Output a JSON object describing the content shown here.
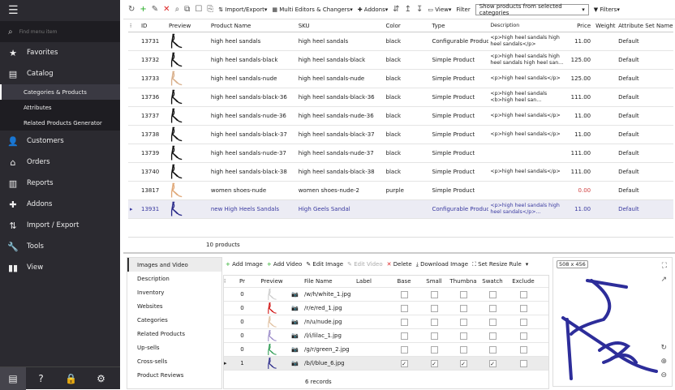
{
  "sidebar": {
    "search_placeholder": "Find menu item",
    "items": [
      {
        "label": "Favorites",
        "icon": "star-icon"
      },
      {
        "label": "Catalog",
        "icon": "archive-icon"
      }
    ],
    "catalog_sub": [
      "Categories & Products",
      "Attributes",
      "Related Products Generator"
    ],
    "items2": [
      {
        "label": "Customers",
        "icon": "user-icon"
      },
      {
        "label": "Orders",
        "icon": "basket-icon"
      },
      {
        "label": "Reports",
        "icon": "chart-icon"
      },
      {
        "label": "Addons",
        "icon": "puzzle-icon"
      },
      {
        "label": "Import / Export",
        "icon": "arrows-icon"
      },
      {
        "label": "Tools",
        "icon": "wrench-icon"
      },
      {
        "label": "View",
        "icon": "columns-icon"
      }
    ]
  },
  "toolbar": {
    "import_export": "Import/Export",
    "multi": "Multi Editors & Changers",
    "addons": "Addons",
    "view": "View",
    "filter_label": "Filter",
    "filter_value": "Show products from selected categories",
    "filters": "Filters"
  },
  "grid": {
    "headers": [
      "ID",
      "Preview",
      "Product Name",
      "SKU",
      "Color",
      "Type",
      "Description",
      "Price",
      "Weight",
      "Attribute Set Name"
    ],
    "rows": [
      {
        "id": "13731",
        "name": "high heel sandals",
        "sku": "high heel sandals",
        "color": "black",
        "type": "Configurable Product",
        "desc": "<p>high heel sandals high heel sandals</p>",
        "price": "11.00",
        "set": "Default",
        "img": "#111"
      },
      {
        "id": "13732",
        "name": "high heel sandals-black",
        "sku": "high heel sandals-black",
        "color": "black",
        "type": "Simple Product",
        "desc": "<p>high heel sandals high heel sandals high heel san...",
        "price": "125.00",
        "set": "Default",
        "img": "#111"
      },
      {
        "id": "13733",
        "name": "high heel sandals-nude",
        "sku": "high heel sandals-nude",
        "color": "black",
        "type": "Simple Product",
        "desc": "<p>high heel sandals</p>",
        "price": "125.00",
        "set": "Default",
        "img": "#d9b08c"
      },
      {
        "id": "13736",
        "name": "high heel sandals-black-36",
        "sku": "high heel sandals-black-36",
        "color": "black",
        "type": "Simple Product",
        "desc": "<p>high heel sandals <b>high heel san...",
        "price": "111.00",
        "set": "Default",
        "img": "#111"
      },
      {
        "id": "13737",
        "name": "high heel sandals-nude-36",
        "sku": "high heel sandals-nude-36",
        "color": "black",
        "type": "Simple Product",
        "desc": "<p>high heel sandals</p>",
        "price": "11.00",
        "set": "Default",
        "img": "#111"
      },
      {
        "id": "13738",
        "name": "high heel sandals-black-37",
        "sku": "high heel sandals-black-37",
        "color": "black",
        "type": "Simple Product",
        "desc": "<p>high heel sandals</p>",
        "price": "11.00",
        "set": "Default",
        "img": "#111"
      },
      {
        "id": "13739",
        "name": "high heel sandals-nude-37",
        "sku": "high heel sandals-nude-37",
        "color": "black",
        "type": "Simple Product",
        "desc": "",
        "price": "111.00",
        "set": "Default",
        "img": "#111"
      },
      {
        "id": "13740",
        "name": "high heel sandals-black-38",
        "sku": "high heel sandals-black-38",
        "color": "black",
        "type": "Simple Product",
        "desc": "<p>high heel sandals</p>",
        "price": "111.00",
        "set": "Default",
        "img": "#111"
      },
      {
        "id": "13817",
        "name": "women shoes-nude",
        "sku": "women shoes-nude-2",
        "color": "purple",
        "type": "Simple Product",
        "desc": "",
        "price": "0.00",
        "set": "Default",
        "img": "#e0a878"
      },
      {
        "id": "13931",
        "name": "new High Heels Sandals",
        "sku": "High Geels Sandal",
        "color": "",
        "type": "Configurable Product",
        "desc": "<p>high heel sandals high heel sandals</p>...",
        "price": "11.00",
        "set": "Default",
        "img": "#2a2a8a"
      }
    ],
    "footer": "10 products",
    "zero_price_color": "#d04040"
  },
  "tabs": [
    "Images and Video",
    "Description",
    "Inventory",
    "Websites",
    "Categories",
    "Related Products",
    "Up-sells",
    "Cross-sells",
    "Product Reviews"
  ],
  "images_toolbar": {
    "add_image": "Add Image",
    "add_video": "Add Video",
    "edit_image": "Edit Image",
    "edit_video": "Edit Video",
    "delete": "Delete",
    "download": "Download Image",
    "resize": "Set Resize Rule"
  },
  "images": {
    "headers": [
      "Pr",
      "Preview",
      "File Name",
      "Label",
      "Base",
      "Small",
      "Thumbna",
      "Swatch",
      "Exclude"
    ],
    "rows": [
      {
        "pos": "0",
        "file": "/w/h/white_1.jpg",
        "color": "#ccc",
        "base": false,
        "small": false,
        "thumb": false,
        "swatch": false,
        "exclude": false
      },
      {
        "pos": "0",
        "file": "/r/e/red_1.jpg",
        "color": "#d01010",
        "base": false,
        "small": false,
        "thumb": false,
        "swatch": false,
        "exclude": false
      },
      {
        "pos": "0",
        "file": "/n/u/nude.jpg",
        "color": "#e0c0a0",
        "base": false,
        "small": false,
        "thumb": false,
        "swatch": false,
        "exclude": false
      },
      {
        "pos": "0",
        "file": "/l/i/lilac_1.jpg",
        "color": "#9a8ac8",
        "base": false,
        "small": false,
        "thumb": false,
        "swatch": false,
        "exclude": false
      },
      {
        "pos": "0",
        "file": "/g/r/green_2.jpg",
        "color": "#2a9a50",
        "base": false,
        "small": false,
        "thumb": false,
        "swatch": false,
        "exclude": false
      },
      {
        "pos": "1",
        "file": "/b/l/blue_6.jpg",
        "color": "#2a2a8a",
        "base": true,
        "small": true,
        "thumb": true,
        "swatch": true,
        "exclude": false
      }
    ],
    "footer": "6 records"
  },
  "viewer": {
    "dimensions": "508 x 456",
    "shoe_color": "#2d2d9a"
  }
}
